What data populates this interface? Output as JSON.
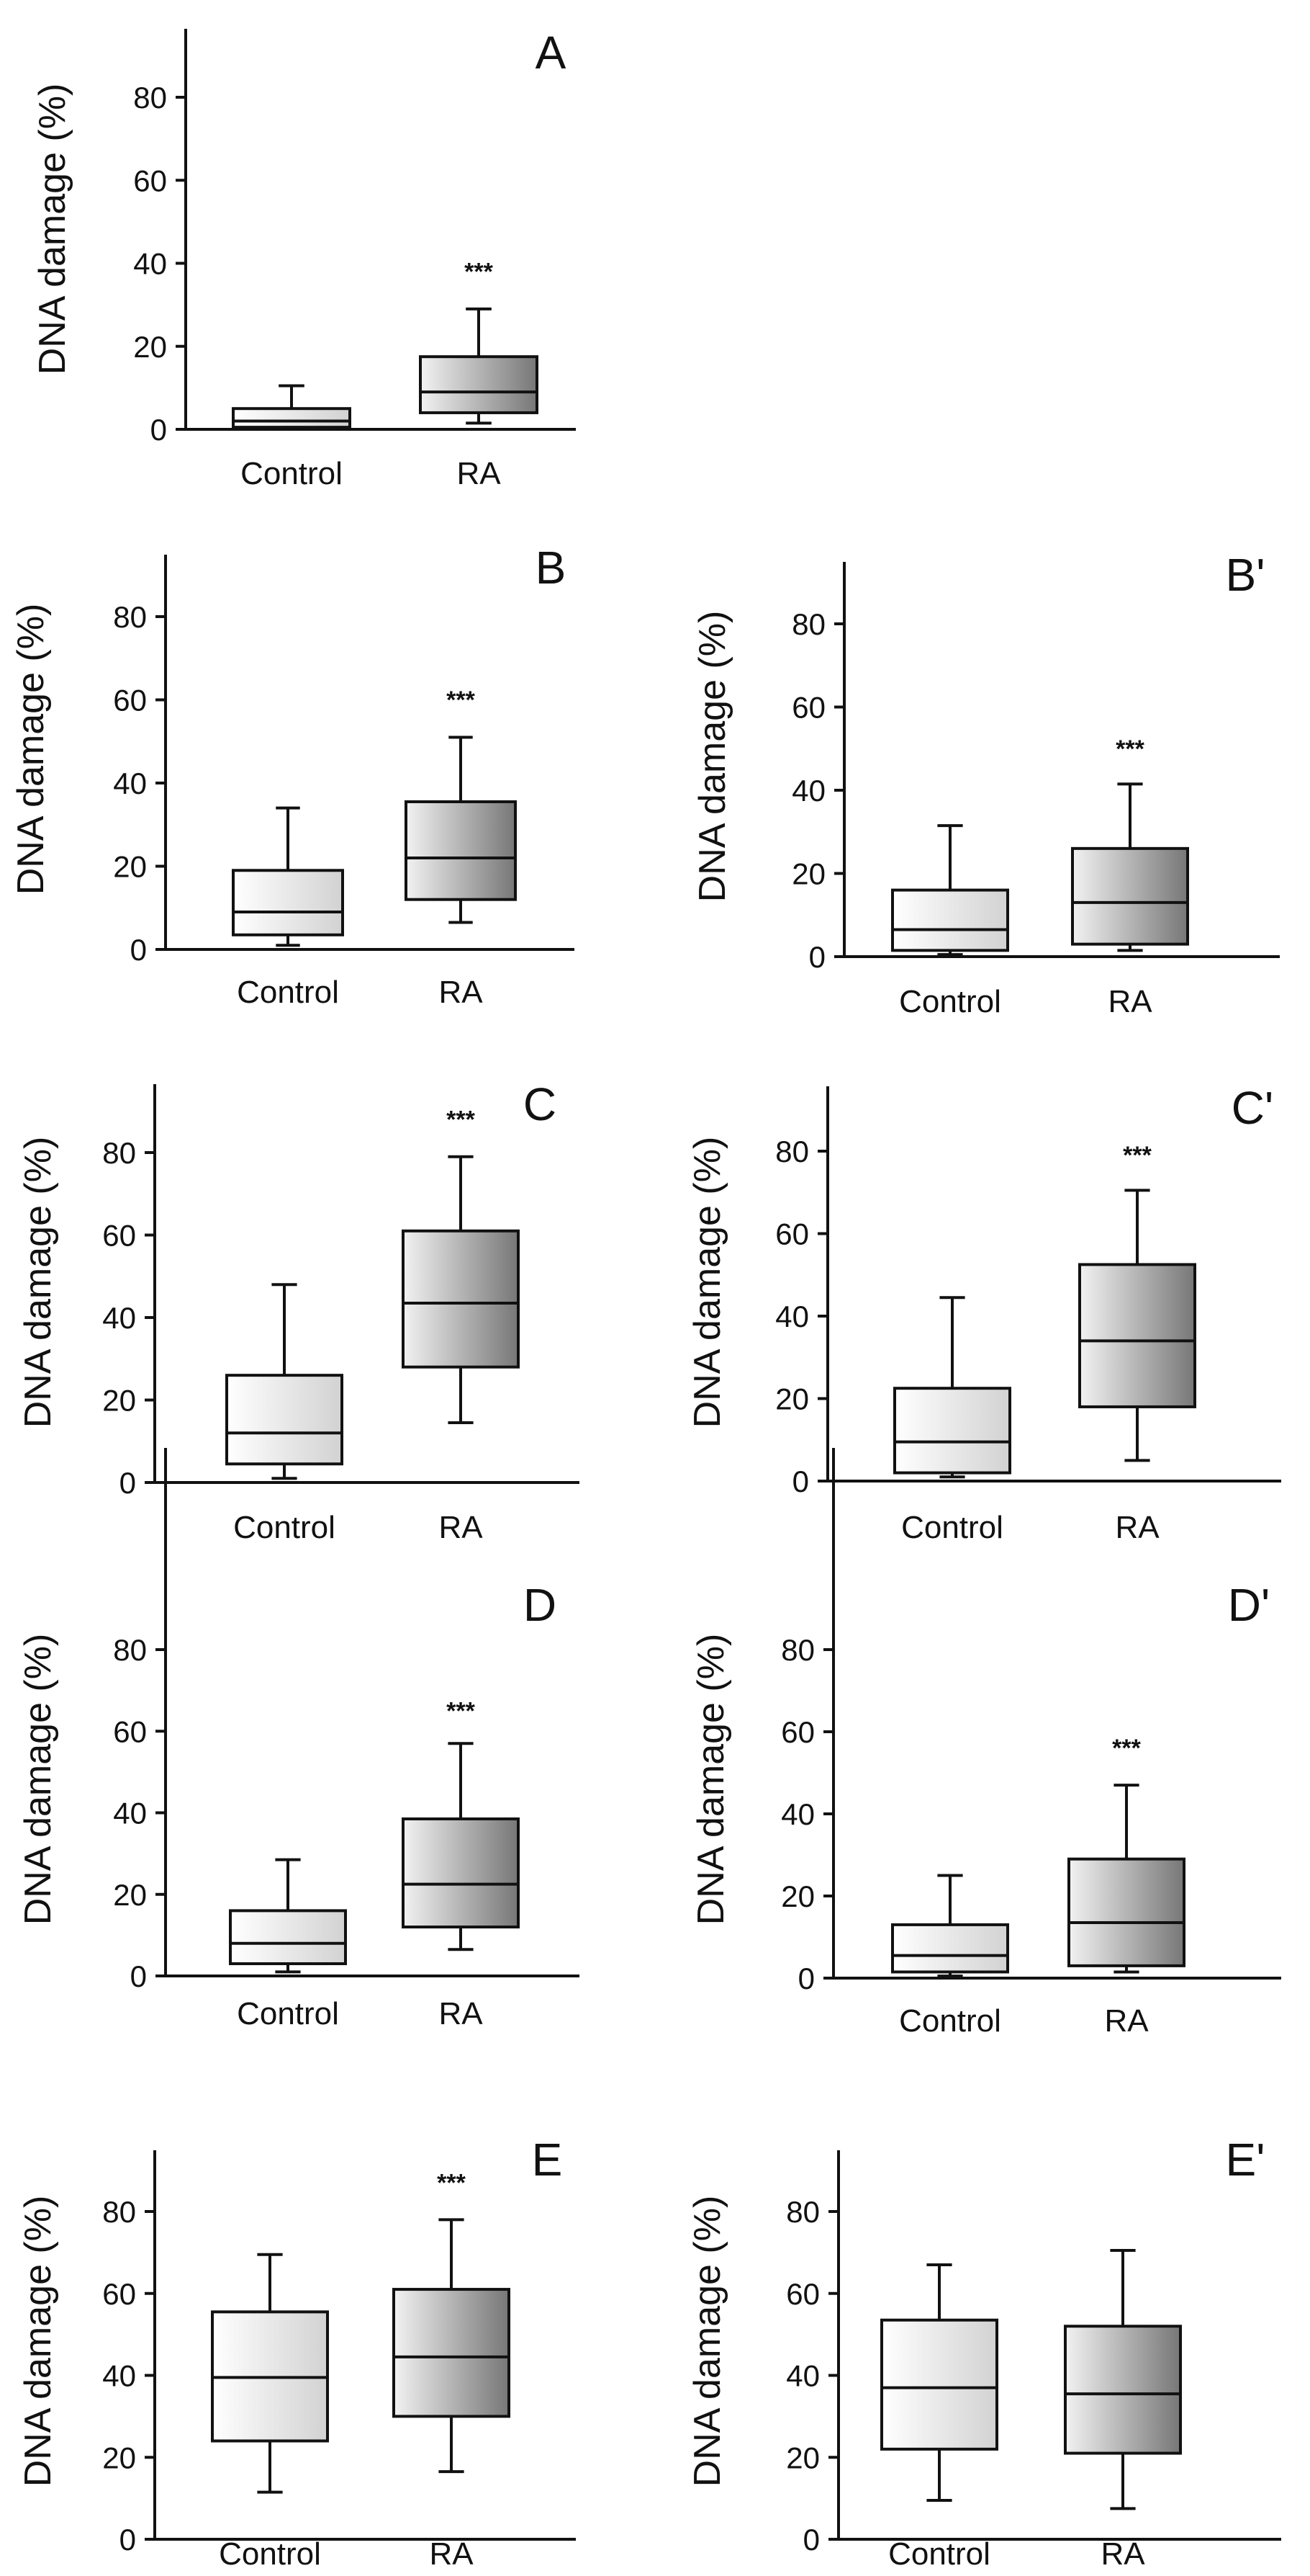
{
  "colors": {
    "axis": "#111111",
    "control_box_gradient": [
      "#ffffff",
      "#d2d2d2"
    ],
    "ra_box_gradient": [
      "#f2f2f2",
      "#777777"
    ]
  },
  "chart_data": [
    {
      "type": "boxplot",
      "panel_label": "A",
      "ylabel": "DNA damage (%)",
      "yticks": [
        0,
        20,
        40,
        60,
        80
      ],
      "ylim": [
        0,
        95
      ],
      "categories": [
        "Control",
        "RA"
      ],
      "boxes": [
        {
          "category": "Control",
          "min": 0,
          "q1": 0.5,
          "median": 2,
          "q3": 5,
          "max": 10.5
        },
        {
          "category": "RA",
          "min": 1.5,
          "q1": 4,
          "median": 9,
          "q3": 17.5,
          "max": 29
        }
      ],
      "significance": {
        "category": "RA",
        "label": "***",
        "y": 36
      }
    },
    {
      "type": "boxplot",
      "panel_label": "B",
      "ylabel": "DNA damage (%)",
      "yticks": [
        0,
        20,
        40,
        60,
        80
      ],
      "ylim": [
        0,
        95
      ],
      "categories": [
        "Control",
        "RA"
      ],
      "boxes": [
        {
          "category": "Control",
          "min": 1,
          "q1": 3.5,
          "median": 9,
          "q3": 19,
          "max": 34
        },
        {
          "category": "RA",
          "min": 6.5,
          "q1": 12,
          "median": 22,
          "q3": 35.5,
          "max": 51
        }
      ],
      "significance": {
        "category": "RA",
        "label": "***",
        "y": 58
      }
    },
    {
      "type": "boxplot",
      "panel_label": "B'",
      "ylabel": "DNA damage (%)",
      "yticks": [
        0,
        20,
        40,
        60,
        80
      ],
      "ylim": [
        0,
        95
      ],
      "categories": [
        "Control",
        "RA"
      ],
      "boxes": [
        {
          "category": "Control",
          "min": 0.5,
          "q1": 1.5,
          "median": 6.5,
          "q3": 16,
          "max": 31.5
        },
        {
          "category": "RA",
          "min": 1.5,
          "q1": 3,
          "median": 13,
          "q3": 26,
          "max": 41.5
        }
      ],
      "significance": {
        "category": "RA",
        "label": "***",
        "y": 48
      }
    },
    {
      "type": "boxplot",
      "panel_label": "C",
      "ylabel": "DNA damage (%)",
      "yticks": [
        0,
        20,
        40,
        60,
        80
      ],
      "ylim": [
        0,
        95
      ],
      "categories": [
        "Control",
        "RA"
      ],
      "boxes": [
        {
          "category": "Control",
          "min": 1,
          "q1": 4.5,
          "median": 12,
          "q3": 26,
          "max": 48
        },
        {
          "category": "RA",
          "min": 14.5,
          "q1": 28,
          "median": 43.5,
          "q3": 61,
          "max": 79
        }
      ],
      "significance": {
        "category": "RA",
        "label": "***",
        "y": 86
      }
    },
    {
      "type": "boxplot",
      "panel_label": "C'",
      "ylabel": "DNA damage (%)",
      "yticks": [
        0,
        20,
        40,
        60,
        80
      ],
      "ylim": [
        0,
        95
      ],
      "categories": [
        "Control",
        "RA"
      ],
      "boxes": [
        {
          "category": "Control",
          "min": 1,
          "q1": 2,
          "median": 9.5,
          "q3": 22.5,
          "max": 44.5
        },
        {
          "category": "RA",
          "min": 5,
          "q1": 18,
          "median": 34,
          "q3": 52.5,
          "max": 70.5
        }
      ],
      "significance": {
        "category": "RA",
        "label": "***",
        "y": 77
      }
    },
    {
      "type": "boxplot",
      "panel_label": "D",
      "ylabel": "DNA damage (%)",
      "yticks": [
        0,
        20,
        40,
        60,
        80
      ],
      "ylim": [
        0,
        95
      ],
      "categories": [
        "Control",
        "RA"
      ],
      "boxes": [
        {
          "category": "Control",
          "min": 1,
          "q1": 3,
          "median": 8,
          "q3": 16,
          "max": 28.5
        },
        {
          "category": "RA",
          "min": 6.5,
          "q1": 12,
          "median": 22.5,
          "q3": 38.5,
          "max": 57
        }
      ],
      "significance": {
        "category": "RA",
        "label": "***",
        "y": 63
      }
    },
    {
      "type": "boxplot",
      "panel_label": "D'",
      "ylabel": "DNA damage (%)",
      "yticks": [
        0,
        20,
        40,
        60,
        80
      ],
      "ylim": [
        0,
        95
      ],
      "categories": [
        "Control",
        "RA"
      ],
      "boxes": [
        {
          "category": "Control",
          "min": 0.5,
          "q1": 1.5,
          "median": 5.5,
          "q3": 13,
          "max": 25
        },
        {
          "category": "RA",
          "min": 1.5,
          "q1": 3,
          "median": 13.5,
          "q3": 29,
          "max": 47
        }
      ],
      "significance": {
        "category": "RA",
        "label": "***",
        "y": 54
      }
    },
    {
      "type": "boxplot",
      "panel_label": "E",
      "ylabel": "DNA damage (%)",
      "yticks": [
        0,
        20,
        40,
        60,
        80
      ],
      "ylim": [
        0,
        95
      ],
      "categories": [
        "Control",
        "RA"
      ],
      "boxes": [
        {
          "category": "Control",
          "min": 11.5,
          "q1": 24,
          "median": 39.5,
          "q3": 55.5,
          "max": 69.5
        },
        {
          "category": "RA",
          "min": 16.5,
          "q1": 30,
          "median": 44.5,
          "q3": 61,
          "max": 78
        }
      ],
      "significance": {
        "category": "RA",
        "label": "***",
        "y": 85
      }
    },
    {
      "type": "boxplot",
      "panel_label": "E'",
      "ylabel": "DNA damage (%)",
      "yticks": [
        0,
        20,
        40,
        60,
        80
      ],
      "ylim": [
        0,
        95
      ],
      "categories": [
        "Control",
        "RA"
      ],
      "boxes": [
        {
          "category": "Control",
          "min": 9.5,
          "q1": 22,
          "median": 37,
          "q3": 53.5,
          "max": 67
        },
        {
          "category": "RA",
          "min": 7.5,
          "q1": 21,
          "median": 35.5,
          "q3": 52,
          "max": 70.5
        }
      ]
    }
  ]
}
